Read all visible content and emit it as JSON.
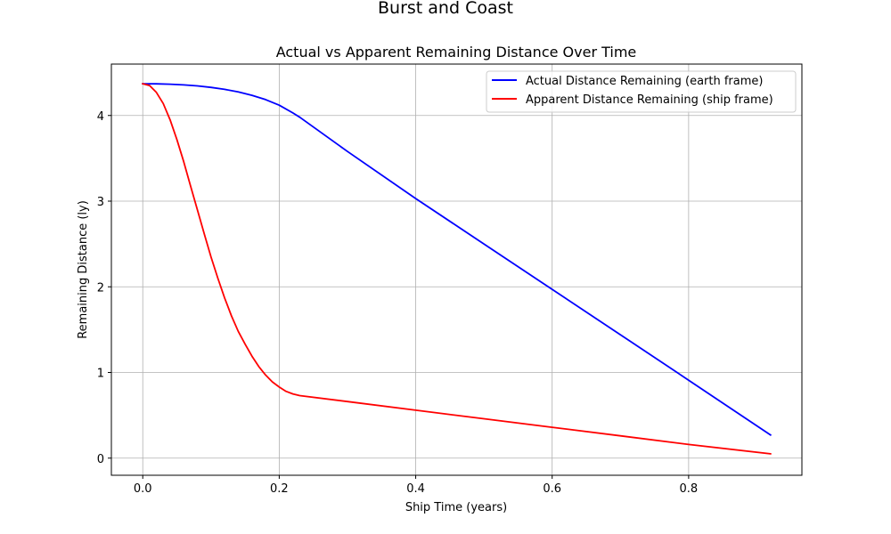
{
  "figure": {
    "suptitle": "Burst and Coast"
  },
  "chart_data": {
    "type": "line",
    "title": "Actual vs Apparent Remaining Distance Over Time",
    "xlabel": "Ship Time (years)",
    "ylabel": "Remaining Distance (ly)",
    "xlim": [
      -0.046,
      0.966
    ],
    "ylim": [
      -0.2,
      4.6
    ],
    "xticks": [
      0.0,
      0.2,
      0.4,
      0.6,
      0.8
    ],
    "xtick_labels": [
      "0.0",
      "0.2",
      "0.4",
      "0.6",
      "0.8"
    ],
    "yticks": [
      0,
      1,
      2,
      3,
      4
    ],
    "ytick_labels": [
      "0",
      "1",
      "2",
      "3",
      "4"
    ],
    "grid": true,
    "legend_position": "upper right",
    "series": [
      {
        "name": "Actual Distance Remaining (earth frame)",
        "color": "#0000ff",
        "x": [
          0.0,
          0.02,
          0.04,
          0.06,
          0.08,
          0.1,
          0.12,
          0.14,
          0.16,
          0.18,
          0.2,
          0.22,
          0.23,
          0.3,
          0.4,
          0.5,
          0.6,
          0.7,
          0.8,
          0.92
        ],
        "y": [
          4.37,
          4.369,
          4.365,
          4.357,
          4.345,
          4.328,
          4.305,
          4.275,
          4.235,
          4.185,
          4.12,
          4.03,
          3.98,
          3.58,
          3.03,
          2.5,
          1.97,
          1.44,
          0.91,
          0.27
        ]
      },
      {
        "name": "Apparent Distance Remaining (ship frame)",
        "color": "#ff0000",
        "x": [
          0.0,
          0.01,
          0.02,
          0.03,
          0.04,
          0.05,
          0.06,
          0.07,
          0.08,
          0.09,
          0.1,
          0.11,
          0.12,
          0.13,
          0.14,
          0.15,
          0.16,
          0.17,
          0.18,
          0.19,
          0.2,
          0.21,
          0.22,
          0.23,
          0.3,
          0.4,
          0.5,
          0.6,
          0.7,
          0.8,
          0.92
        ],
        "y": [
          4.37,
          4.35,
          4.27,
          4.14,
          3.95,
          3.72,
          3.46,
          3.18,
          2.9,
          2.62,
          2.35,
          2.1,
          1.87,
          1.66,
          1.48,
          1.33,
          1.19,
          1.07,
          0.97,
          0.89,
          0.83,
          0.78,
          0.75,
          0.73,
          0.66,
          0.56,
          0.46,
          0.36,
          0.26,
          0.16,
          0.05
        ]
      }
    ]
  }
}
